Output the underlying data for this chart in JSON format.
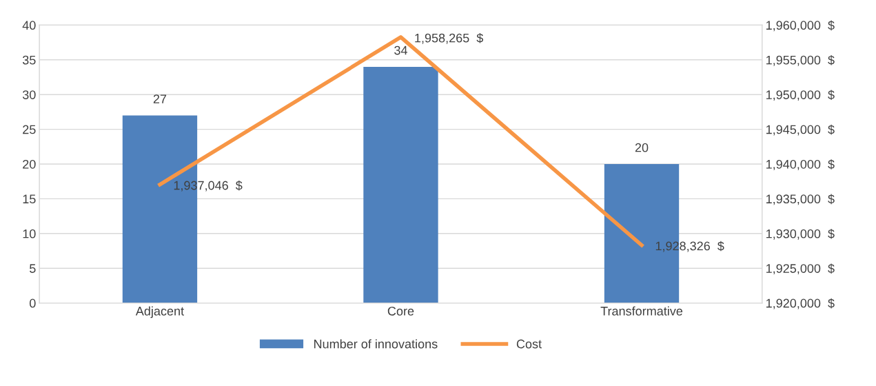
{
  "chart_data": {
    "type": "bar",
    "categories": [
      "Adjacent",
      "Core",
      "Transformative"
    ],
    "series": [
      {
        "name": "Number of innovations",
        "color": "#4f81bd",
        "values": [
          27,
          34,
          20
        ],
        "value_labels": [
          "27",
          "34",
          "20"
        ]
      },
      {
        "name": "Cost",
        "type": "line",
        "axis": "y2",
        "color": "#f79646",
        "values": [
          1937046,
          1958265,
          1928326
        ],
        "value_labels": [
          "1,937,046  $",
          "1,958,265  $",
          "1,928,326  $"
        ]
      }
    ],
    "ylim": [
      0,
      40
    ],
    "yticks": [
      0,
      5,
      10,
      15,
      20,
      25,
      30,
      35,
      40
    ],
    "y2lim": [
      1920000,
      1960000
    ],
    "y2ticks": [
      {
        "value": 1920000,
        "label": "1,920,000  $"
      },
      {
        "value": 1925000,
        "label": "1,925,000  $"
      },
      {
        "value": 1930000,
        "label": "1,930,000  $"
      },
      {
        "value": 1935000,
        "label": "1,935,000  $"
      },
      {
        "value": 1940000,
        "label": "1,940,000  $"
      },
      {
        "value": 1945000,
        "label": "1,945,000  $"
      },
      {
        "value": 1950000,
        "label": "1,950,000  $"
      },
      {
        "value": 1955000,
        "label": "1,955,000  $"
      },
      {
        "value": 1960000,
        "label": "1,960,000  $"
      }
    ],
    "grid": "y",
    "legend": "bottom",
    "marker": "none",
    "line_style": "solid"
  }
}
